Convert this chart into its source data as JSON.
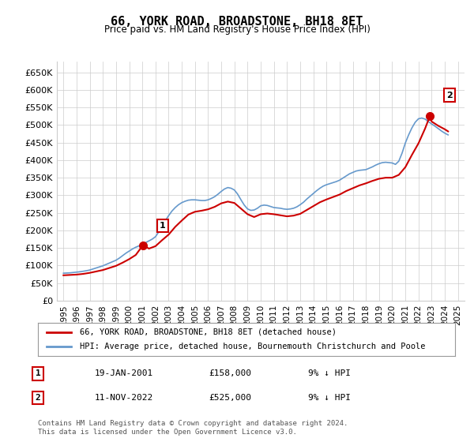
{
  "title": "66, YORK ROAD, BROADSTONE, BH18 8ET",
  "subtitle": "Price paid vs. HM Land Registry's House Price Index (HPI)",
  "legend_line1": "66, YORK ROAD, BROADSTONE, BH18 8ET (detached house)",
  "legend_line2": "HPI: Average price, detached house, Bournemouth Christchurch and Poole",
  "sale1_label": "1",
  "sale1_date": "19-JAN-2001",
  "sale1_price": "£158,000",
  "sale1_hpi": "9% ↓ HPI",
  "sale1_x": 2001.05,
  "sale1_y": 158000,
  "sale2_label": "2",
  "sale2_date": "11-NOV-2022",
  "sale2_price": "£525,000",
  "sale2_hpi": "9% ↓ HPI",
  "sale2_x": 2022.86,
  "sale2_y": 525000,
  "ylim": [
    0,
    680000
  ],
  "xlim": [
    1994.5,
    2025.5
  ],
  "yticks": [
    0,
    50000,
    100000,
    150000,
    200000,
    250000,
    300000,
    350000,
    400000,
    450000,
    500000,
    550000,
    600000,
    650000
  ],
  "ytick_labels": [
    "£0",
    "£50K",
    "£100K",
    "£150K",
    "£200K",
    "£250K",
    "£300K",
    "£350K",
    "£400K",
    "£450K",
    "£500K",
    "£550K",
    "£600K",
    "£650K"
  ],
  "xticks": [
    1995,
    1996,
    1997,
    1998,
    1999,
    2000,
    2001,
    2002,
    2003,
    2004,
    2005,
    2006,
    2007,
    2008,
    2009,
    2010,
    2011,
    2012,
    2013,
    2014,
    2015,
    2016,
    2017,
    2018,
    2019,
    2020,
    2021,
    2022,
    2023,
    2024,
    2025
  ],
  "line_color_red": "#cc0000",
  "line_color_blue": "#6699cc",
  "point_marker_color": "#cc0000",
  "grid_color": "#cccccc",
  "background_color": "#ffffff",
  "footnote": "Contains HM Land Registry data © Crown copyright and database right 2024.\nThis data is licensed under the Open Government Licence v3.0.",
  "hpi_data_x": [
    1995.0,
    1995.25,
    1995.5,
    1995.75,
    1996.0,
    1996.25,
    1996.5,
    1996.75,
    1997.0,
    1997.25,
    1997.5,
    1997.75,
    1998.0,
    1998.25,
    1998.5,
    1998.75,
    1999.0,
    1999.25,
    1999.5,
    1999.75,
    2000.0,
    2000.25,
    2000.5,
    2000.75,
    2001.0,
    2001.25,
    2001.5,
    2001.75,
    2002.0,
    2002.25,
    2002.5,
    2002.75,
    2003.0,
    2003.25,
    2003.5,
    2003.75,
    2004.0,
    2004.25,
    2004.5,
    2004.75,
    2005.0,
    2005.25,
    2005.5,
    2005.75,
    2006.0,
    2006.25,
    2006.5,
    2006.75,
    2007.0,
    2007.25,
    2007.5,
    2007.75,
    2008.0,
    2008.25,
    2008.5,
    2008.75,
    2009.0,
    2009.25,
    2009.5,
    2009.75,
    2010.0,
    2010.25,
    2010.5,
    2010.75,
    2011.0,
    2011.25,
    2011.5,
    2011.75,
    2012.0,
    2012.25,
    2012.5,
    2012.75,
    2013.0,
    2013.25,
    2013.5,
    2013.75,
    2014.0,
    2014.25,
    2014.5,
    2014.75,
    2015.0,
    2015.25,
    2015.5,
    2015.75,
    2016.0,
    2016.25,
    2016.5,
    2016.75,
    2017.0,
    2017.25,
    2017.5,
    2017.75,
    2018.0,
    2018.25,
    2018.5,
    2018.75,
    2019.0,
    2019.25,
    2019.5,
    2019.75,
    2020.0,
    2020.25,
    2020.5,
    2020.75,
    2021.0,
    2021.25,
    2021.5,
    2021.75,
    2022.0,
    2022.25,
    2022.5,
    2022.75,
    2023.0,
    2023.25,
    2023.5,
    2023.75,
    2024.0,
    2024.25
  ],
  "hpi_data_y": [
    78000,
    78500,
    79000,
    80000,
    81000,
    82000,
    83500,
    85000,
    87000,
    90000,
    93000,
    96000,
    99000,
    103000,
    107000,
    111000,
    115000,
    121000,
    128000,
    135000,
    141000,
    147000,
    152000,
    156000,
    160000,
    165000,
    170000,
    175000,
    182000,
    196000,
    212000,
    228000,
    242000,
    255000,
    265000,
    273000,
    279000,
    283000,
    286000,
    287000,
    287000,
    286000,
    285000,
    285000,
    287000,
    291000,
    296000,
    303000,
    311000,
    318000,
    322000,
    320000,
    315000,
    303000,
    287000,
    272000,
    261000,
    257000,
    258000,
    263000,
    270000,
    272000,
    271000,
    268000,
    265000,
    264000,
    263000,
    261000,
    260000,
    261000,
    263000,
    267000,
    273000,
    280000,
    289000,
    297000,
    305000,
    313000,
    320000,
    326000,
    330000,
    333000,
    336000,
    339000,
    343000,
    349000,
    355000,
    361000,
    365000,
    369000,
    371000,
    372000,
    373000,
    377000,
    381000,
    386000,
    390000,
    393000,
    394000,
    393000,
    392000,
    388000,
    397000,
    420000,
    449000,
    472000,
    492000,
    508000,
    518000,
    520000,
    517000,
    510000,
    503000,
    497000,
    490000,
    483000,
    477000,
    472000
  ],
  "price_paid_x": [
    1995.0,
    1995.5,
    1996.0,
    1996.5,
    1997.0,
    1997.5,
    1998.0,
    1998.5,
    1999.0,
    1999.5,
    2000.0,
    2000.5,
    2001.05,
    2001.5,
    2002.0,
    2002.5,
    2003.0,
    2003.5,
    2004.0,
    2004.5,
    2005.0,
    2005.5,
    2006.0,
    2006.5,
    2007.0,
    2007.5,
    2008.0,
    2008.5,
    2009.0,
    2009.5,
    2010.0,
    2010.5,
    2011.0,
    2011.5,
    2012.0,
    2012.5,
    2013.0,
    2013.5,
    2014.0,
    2014.5,
    2015.0,
    2015.5,
    2016.0,
    2016.5,
    2017.0,
    2017.5,
    2018.0,
    2018.5,
    2019.0,
    2019.5,
    2020.0,
    2020.5,
    2021.0,
    2021.5,
    2022.0,
    2022.5,
    2022.86,
    2023.0,
    2023.5,
    2024.0,
    2024.25
  ],
  "price_paid_y": [
    72000,
    73000,
    74000,
    76000,
    79000,
    83000,
    87000,
    93000,
    99000,
    108000,
    118000,
    130000,
    158000,
    148000,
    155000,
    172000,
    188000,
    210000,
    228000,
    245000,
    253000,
    256000,
    260000,
    267000,
    277000,
    282000,
    278000,
    262000,
    246000,
    238000,
    246000,
    248000,
    246000,
    243000,
    240000,
    242000,
    247000,
    258000,
    269000,
    280000,
    288000,
    295000,
    302000,
    312000,
    320000,
    328000,
    334000,
    341000,
    347000,
    350000,
    350000,
    358000,
    380000,
    415000,
    448000,
    490000,
    525000,
    510000,
    498000,
    488000,
    482000
  ]
}
